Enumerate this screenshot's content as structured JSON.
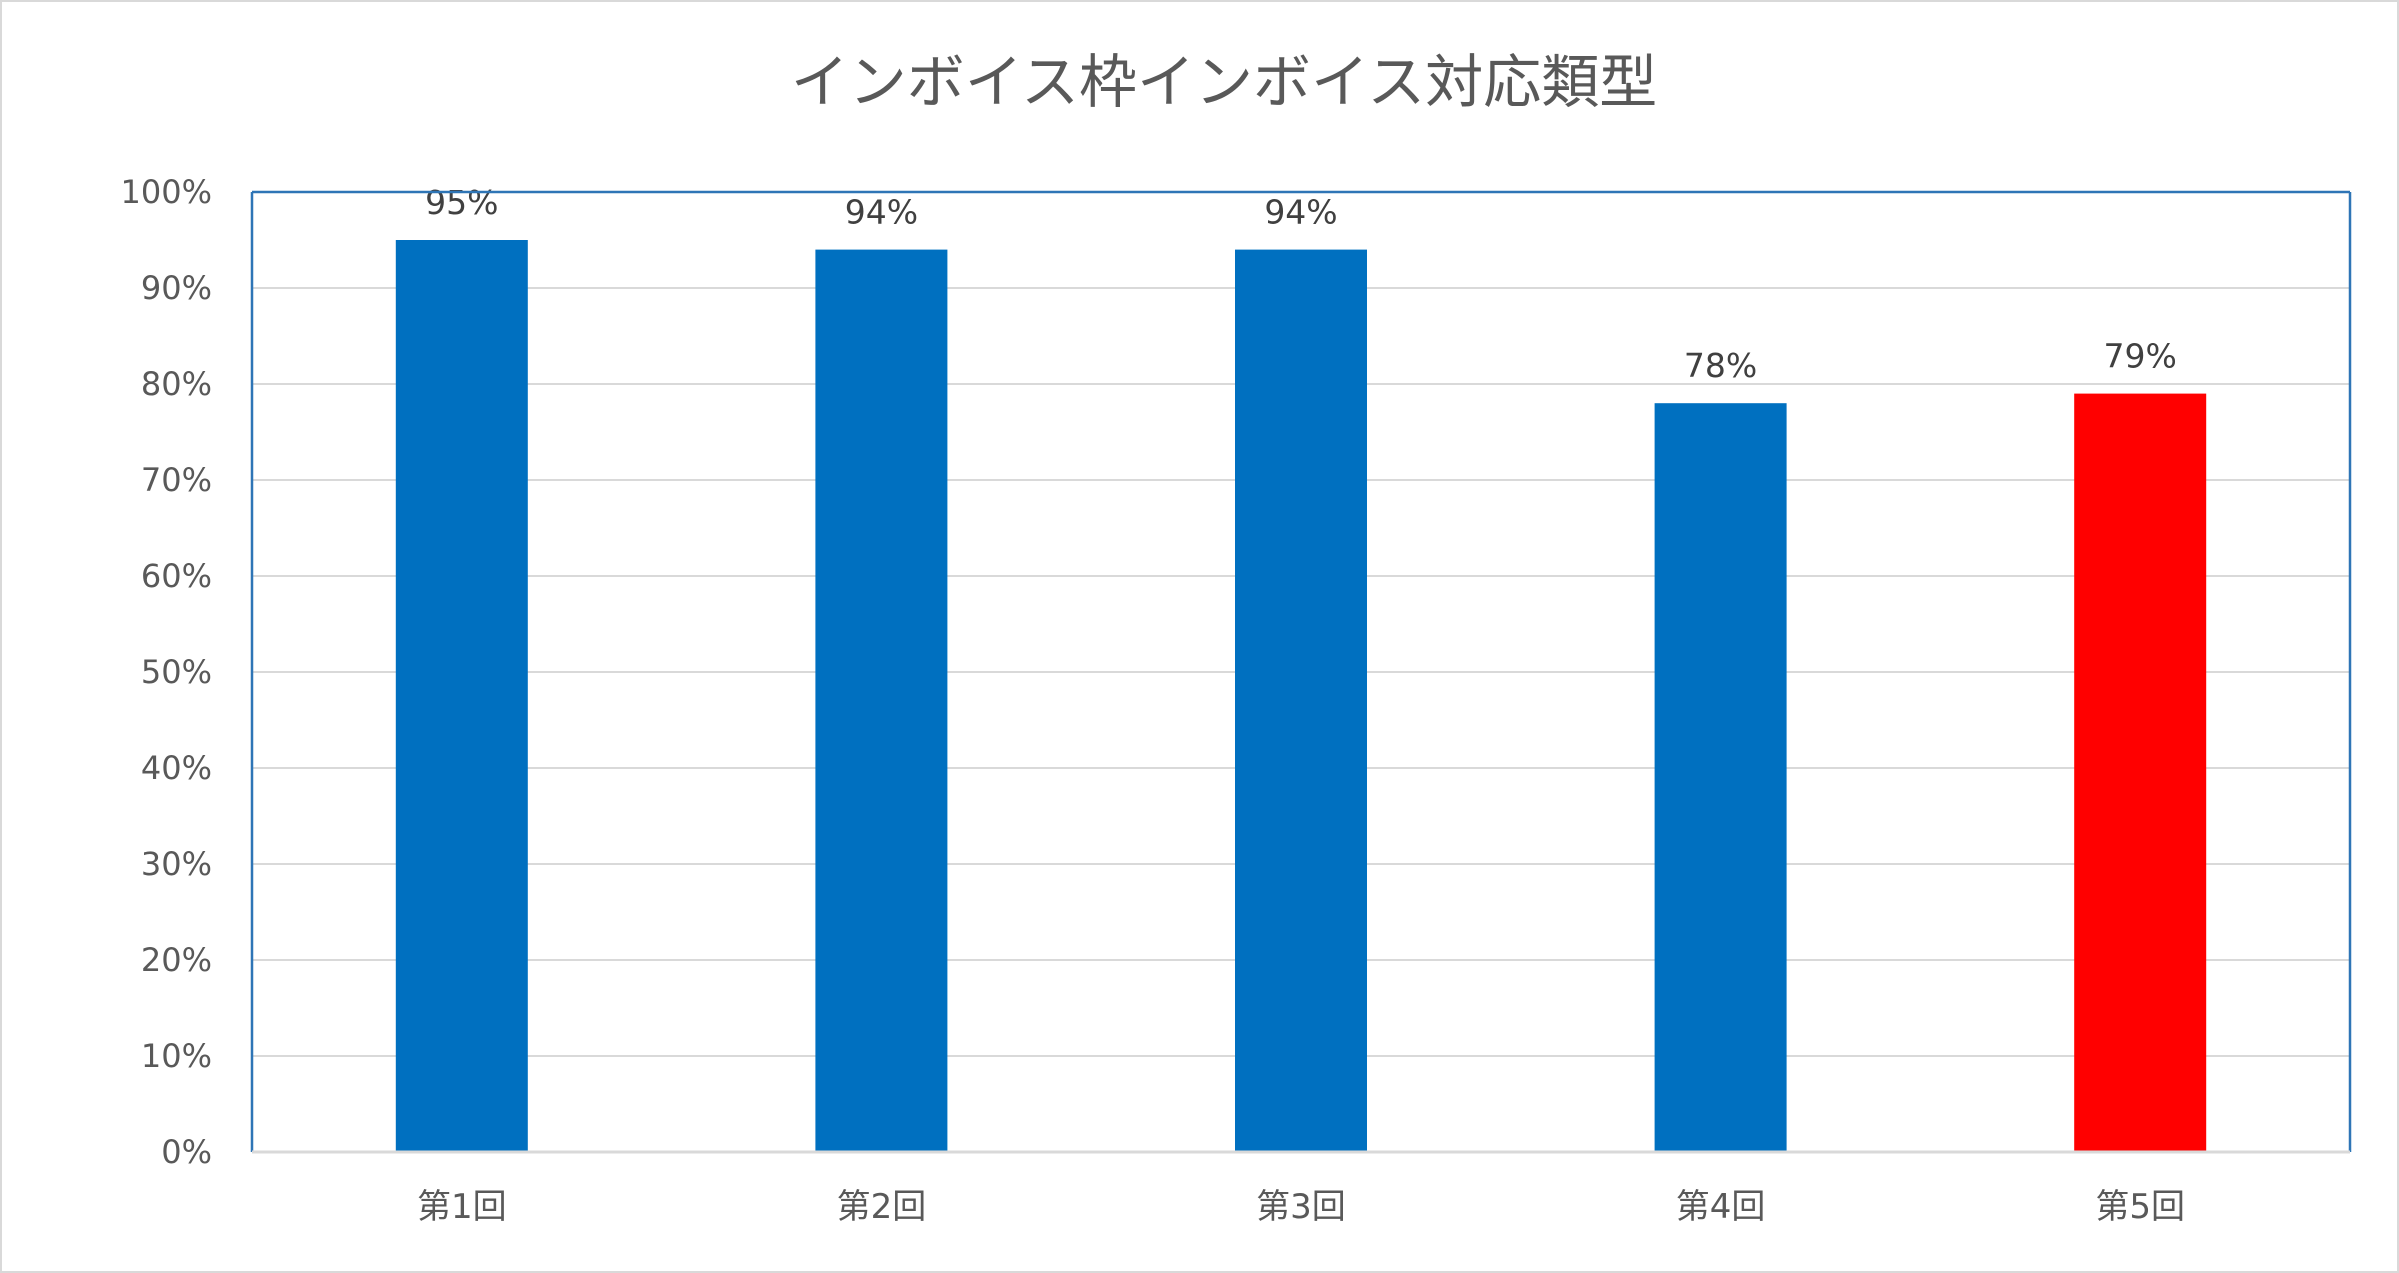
{
  "chart_data": {
    "type": "bar",
    "title": "インボイス枠インボイス対応類型",
    "xlabel": "",
    "ylabel": "",
    "categories": [
      "第1回",
      "第2回",
      "第3回",
      "第4回",
      "第5回"
    ],
    "values": [
      95,
      94,
      94,
      78,
      79
    ],
    "data_labels": [
      "95%",
      "94%",
      "94%",
      "78%",
      "79%"
    ],
    "ylim": [
      0,
      100
    ],
    "y_ticks": [
      0,
      10,
      20,
      30,
      40,
      50,
      60,
      70,
      80,
      90,
      100
    ],
    "y_tick_labels": [
      "0%",
      "10%",
      "20%",
      "30%",
      "40%",
      "50%",
      "60%",
      "70%",
      "80%",
      "90%",
      "100%"
    ],
    "grid": true,
    "legend": "none",
    "bar_colors": [
      "#0070c0",
      "#0070c0",
      "#0070c0",
      "#0070c0",
      "#ff0000"
    ],
    "grid_color": "#d9d9d9",
    "plot_border_color": "#2e75b6"
  }
}
